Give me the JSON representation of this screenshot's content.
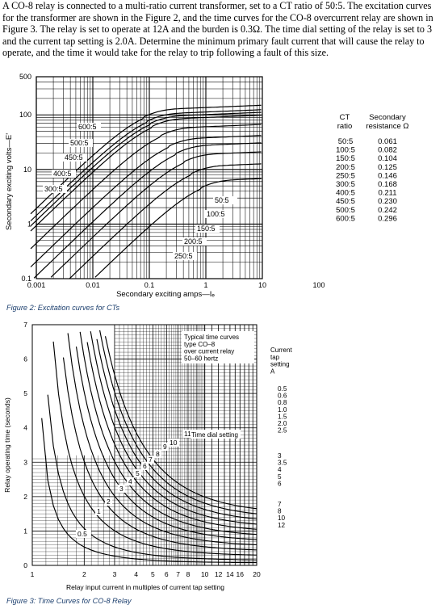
{
  "problem": {
    "text": "A CO-8 relay is connected to a multi-ratio current transformer, set to a CT ratio of 50:5. The excitation curves for the transformer are shown in the Figure 2, and the time curves for the CO-8 overcurrent relay are shown in Figure 3. The relay is set to operate at 12A and the burden is 0.3Ω. The time dial setting of the relay is set to 3 and the current tap setting is 2.0A. Determine the minimum primary fault current that will cause the relay to operate, and the time it would take for the relay to trip following a fault of this size."
  },
  "figure2": {
    "caption": "Figure 2: Excitation curves for CTs",
    "ylabel": "Secondary exciting volts—E'",
    "xlabel": "Secondary exciting amps—Iₑ",
    "y_ticks": [
      "500",
      "100",
      "10",
      "1",
      "0.1"
    ],
    "x_ticks": [
      "0.001",
      "0.01",
      "0.1",
      "1",
      "10",
      "100"
    ],
    "ct_labels_upper": [
      "600:5",
      "500:5",
      "450:5",
      "400:5",
      "300:5"
    ],
    "ct_labels_lower": [
      "50:5",
      "100:5",
      "150:5",
      "200:5",
      "250:5"
    ],
    "table_header_ct": [
      "CT",
      "ratio"
    ],
    "table_header_res": [
      "Secondary",
      "resistance Ω"
    ],
    "table_ratios": [
      "50:5",
      "100:5",
      "150:5",
      "200:5",
      "250:5",
      "300:5",
      "400:5",
      "450:5",
      "500:5",
      "600:5"
    ],
    "table_res": [
      "0.061",
      "0.082",
      "0.104",
      "0.125",
      "0.146",
      "0.168",
      "0.211",
      "0.230",
      "0.242",
      "0.296"
    ]
  },
  "figure3": {
    "caption": "Figure 3: Time Curves for CO-8 Relay",
    "ylabel": "Relay operating time (seconds)",
    "xlabel": "Relay input current in multiples of current tap setting",
    "y_ticks": [
      "7",
      "6",
      "5",
      "4",
      "3",
      "2",
      "1",
      "0"
    ],
    "x_ticks": [
      "1",
      "2",
      "3",
      "4",
      "5",
      "6",
      "7",
      "8",
      "10",
      "12",
      "14",
      "16",
      "20"
    ],
    "note": [
      "Typical time curves",
      "type CO–8",
      "over current relay",
      "50–60 hertz"
    ],
    "tds_label": "Time dial setting",
    "dial_numbers": [
      "0.5",
      "1",
      "2",
      "3",
      "4",
      "5",
      "6",
      "7",
      "8",
      "9",
      "10",
      "11"
    ],
    "tap_header": [
      "Current",
      "tap",
      "setting",
      "A"
    ],
    "tap_groups": [
      [
        "0.5",
        "0.6",
        "0.8",
        "1.0",
        "1.5",
        "2.0",
        "2.5"
      ],
      [
        "3",
        "3.5",
        "4",
        "5",
        "6"
      ],
      [
        "7",
        "8",
        "10",
        "12"
      ]
    ]
  },
  "chart_data": [
    {
      "type": "line",
      "xscale": "log",
      "yscale": "log",
      "xlim": [
        0.001,
        100
      ],
      "ylim": [
        0.1,
        500
      ],
      "series": [
        {
          "name": "50:5",
          "saturation_volts": 6,
          "knee_amps": 0.8
        },
        {
          "name": "100:5",
          "saturation_volts": 11,
          "knee_amps": 0.55
        },
        {
          "name": "150:5",
          "saturation_volts": 18,
          "knee_amps": 0.4
        },
        {
          "name": "200:5",
          "saturation_volts": 26,
          "knee_amps": 0.3
        },
        {
          "name": "250:5",
          "saturation_volts": 35,
          "knee_amps": 0.22
        },
        {
          "name": "300:5",
          "saturation_volts": 55,
          "knee_amps": 0.16
        },
        {
          "name": "400:5",
          "saturation_volts": 80,
          "knee_amps": 0.11
        },
        {
          "name": "450:5",
          "saturation_volts": 90,
          "knee_amps": 0.1
        },
        {
          "name": "500:5",
          "saturation_volts": 100,
          "knee_amps": 0.09
        },
        {
          "name": "600:5",
          "saturation_volts": 120,
          "knee_amps": 0.08
        }
      ]
    },
    {
      "type": "line",
      "xscale": "log",
      "xlim": [
        1,
        20
      ],
      "ylim": [
        0,
        7
      ],
      "series": [
        {
          "name": "0.5",
          "t_at_20": 0.08
        },
        {
          "name": "1",
          "t_at_20": 0.16
        },
        {
          "name": "2",
          "t_at_20": 0.3
        },
        {
          "name": "3",
          "t_at_20": 0.45
        },
        {
          "name": "4",
          "t_at_20": 0.6
        },
        {
          "name": "5",
          "t_at_20": 0.75
        },
        {
          "name": "6",
          "t_at_20": 0.9
        },
        {
          "name": "7",
          "t_at_20": 1.05
        },
        {
          "name": "8",
          "t_at_20": 1.2
        },
        {
          "name": "9",
          "t_at_20": 1.35
        },
        {
          "name": "10",
          "t_at_20": 1.5
        },
        {
          "name": "11",
          "t_at_20": 1.65
        }
      ]
    }
  ]
}
